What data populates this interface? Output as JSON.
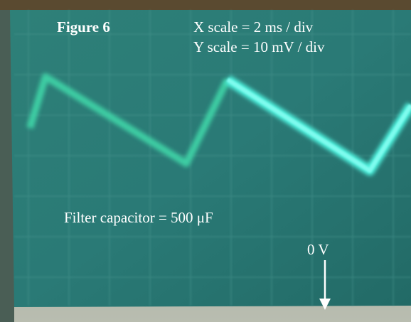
{
  "figure_label": "Figure 6",
  "x_scale": "X scale = 2 ms / div",
  "y_scale": "Y scale = 10 mV / div",
  "capacitor": "Filter capacitor = 500 μF",
  "zero_label": "0 V"
}
